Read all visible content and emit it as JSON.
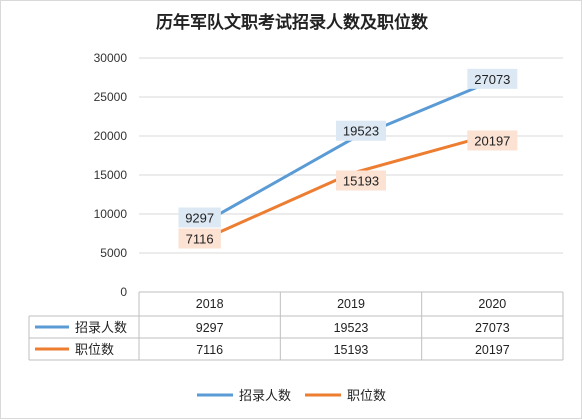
{
  "chart_data": {
    "type": "line",
    "title": "历年军队文职考试招录人数及职位数",
    "categories": [
      "2018",
      "2019",
      "2020"
    ],
    "ylim": [
      0,
      30000
    ],
    "yticks": [
      "0",
      "5000",
      "10000",
      "15000",
      "20000",
      "25000",
      "30000"
    ],
    "grid": true,
    "legend_position": "bottom",
    "series": [
      {
        "name": "招录人数",
        "values": [
          9297,
          19523,
          27073
        ],
        "color": "#5b9bd5",
        "label_bg": "#dce9f5"
      },
      {
        "name": "职位数",
        "values": [
          7116,
          15193,
          20197
        ],
        "color": "#ed7d31",
        "label_bg": "#fbe2d3"
      }
    ],
    "data_table": {
      "rows": [
        {
          "name": "招录人数",
          "values": [
            "9297",
            "19523",
            "27073"
          ]
        },
        {
          "name": "职位数",
          "values": [
            "7116",
            "15193",
            "20197"
          ]
        }
      ]
    }
  }
}
